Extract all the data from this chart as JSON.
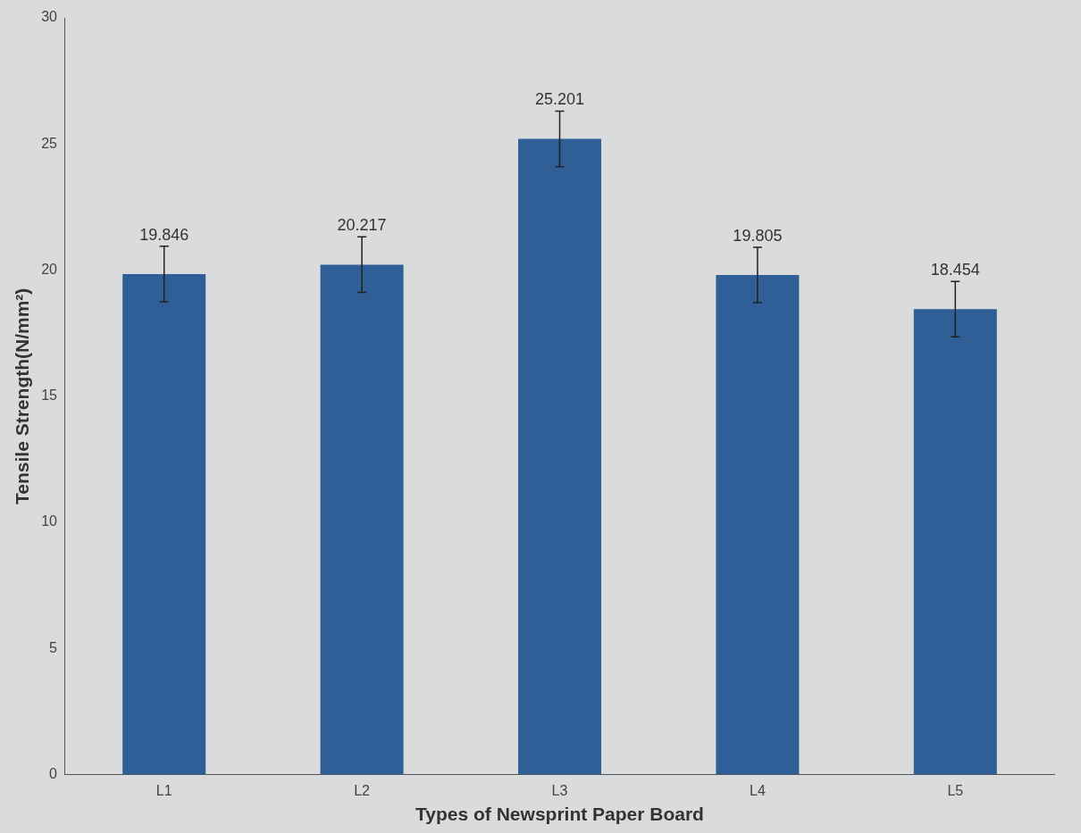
{
  "chart_data": {
    "type": "bar",
    "xlabel": "Types of Newsprint Paper Board",
    "ylabel": "Tensile Strength(N/mm²)",
    "categories": [
      "L1",
      "L2",
      "L3",
      "L4",
      "L5"
    ],
    "values": [
      19.846,
      20.217,
      25.201,
      19.805,
      18.454
    ],
    "errors": [
      1.1,
      1.1,
      1.1,
      1.1,
      1.1
    ],
    "color": "#2f5f96",
    "ylim": [
      0,
      30
    ],
    "yticks": [
      0,
      5,
      10,
      15,
      20,
      25,
      30
    ],
    "grid": false,
    "legend": false,
    "data_labels": true
  }
}
